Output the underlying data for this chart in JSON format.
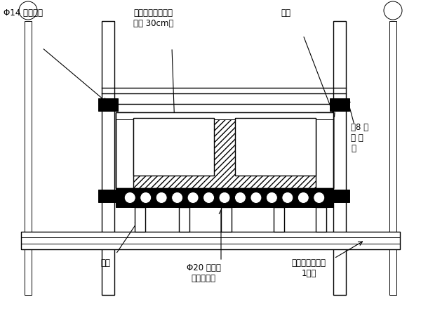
{
  "bg_color": "#ffffff",
  "line_color": "#000000",
  "fig_w": 6.0,
  "fig_h": 4.5,
  "dpi": 100,
  "labels": {
    "phi14": "Φ14 对拉螺杆",
    "cast": "第一次浇筑层（顶\n板底 30cm）",
    "side": "侧模",
    "channel": "《8 槽\n钗 横\n架",
    "jack": "顶托",
    "rebar": "Φ20 螺纹钗\n朔底模骨架",
    "platform": "操作平台（宽度\n1米）"
  }
}
